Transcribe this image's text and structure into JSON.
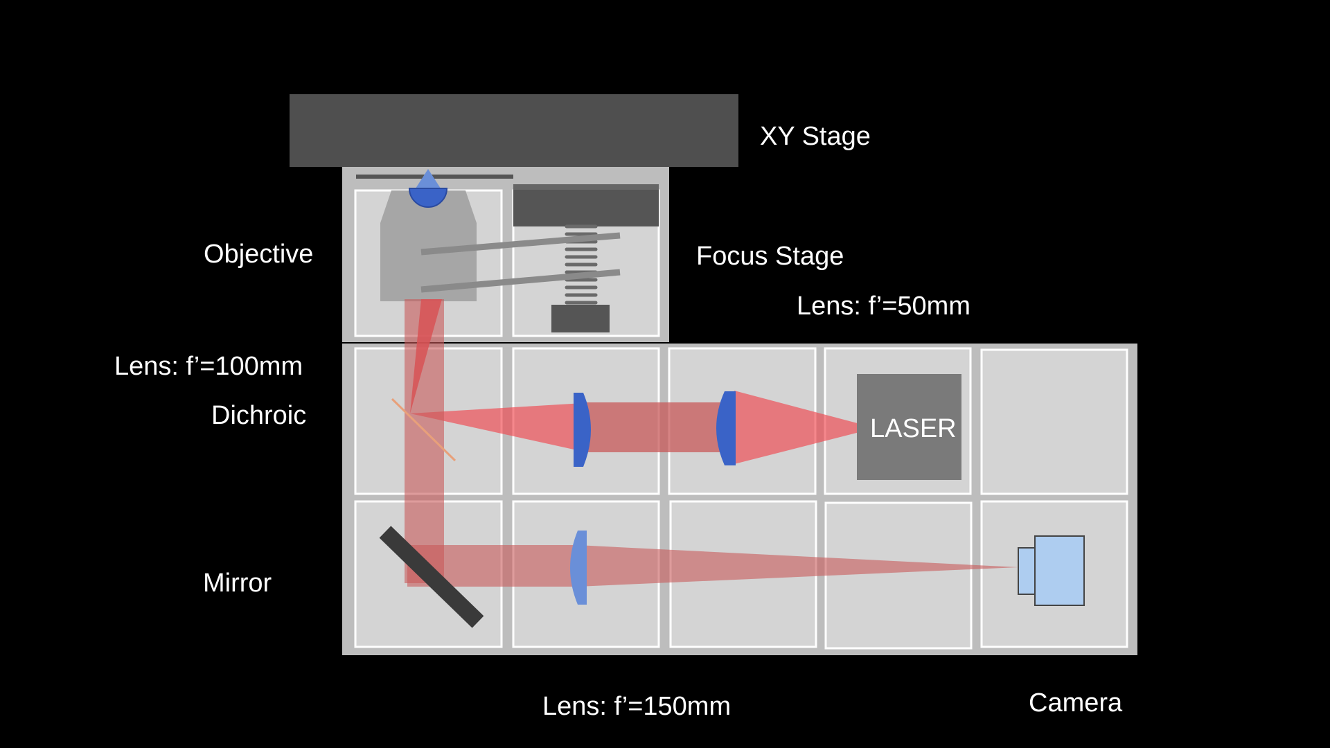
{
  "labels": {
    "xy_stage": "XY Stage",
    "objective": "Objective",
    "focus_stage": "Focus Stage",
    "lens_50": "Lens: f’=50mm",
    "lens_100": "Lens: f’=100mm",
    "dichroic": "Dichroic",
    "mirror": "Mirror",
    "lens_150": "Lens: f’=150mm",
    "camera": "Camera",
    "laser": "LASER"
  },
  "colors": {
    "background": "#000000",
    "plate": "#bdbdbd",
    "cell": "#d4d4d4",
    "stage": "#4f4f4f",
    "beam": "#f0474f",
    "lens": "#3a63c7",
    "camera": "#aecdf0",
    "laser_box": "#7a7a7a",
    "mirror": "#3a3a3a"
  }
}
